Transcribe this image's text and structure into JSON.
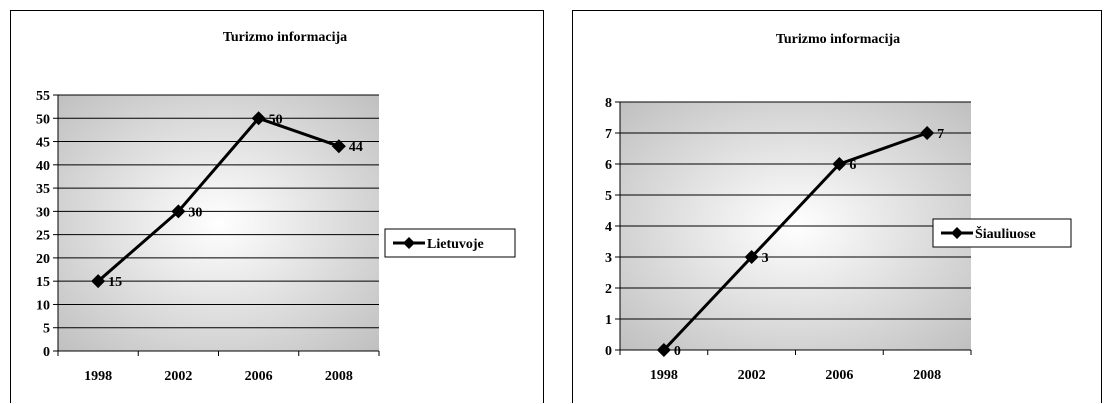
{
  "chart_data": [
    {
      "type": "line",
      "title": "Turizmo informacija",
      "categories": [
        "1998",
        "2002",
        "2006",
        "2008"
      ],
      "series": [
        {
          "name": "Lietuvoje",
          "values": [
            15,
            30,
            50,
            44
          ]
        }
      ],
      "yticks": [
        0,
        5,
        10,
        15,
        20,
        25,
        30,
        35,
        40,
        45,
        50,
        55
      ],
      "ylim": [
        0,
        55
      ],
      "grid": true,
      "legend": "right"
    },
    {
      "type": "line",
      "title": "Turizmo informacija",
      "categories": [
        "1998",
        "2002",
        "2006",
        "2008"
      ],
      "series": [
        {
          "name": "Šiauliuose",
          "values": [
            0,
            3,
            6,
            7
          ]
        }
      ],
      "yticks": [
        0,
        1,
        2,
        3,
        4,
        5,
        6,
        7,
        8
      ],
      "ylim": [
        0,
        8
      ],
      "grid": true,
      "legend": "right"
    }
  ]
}
